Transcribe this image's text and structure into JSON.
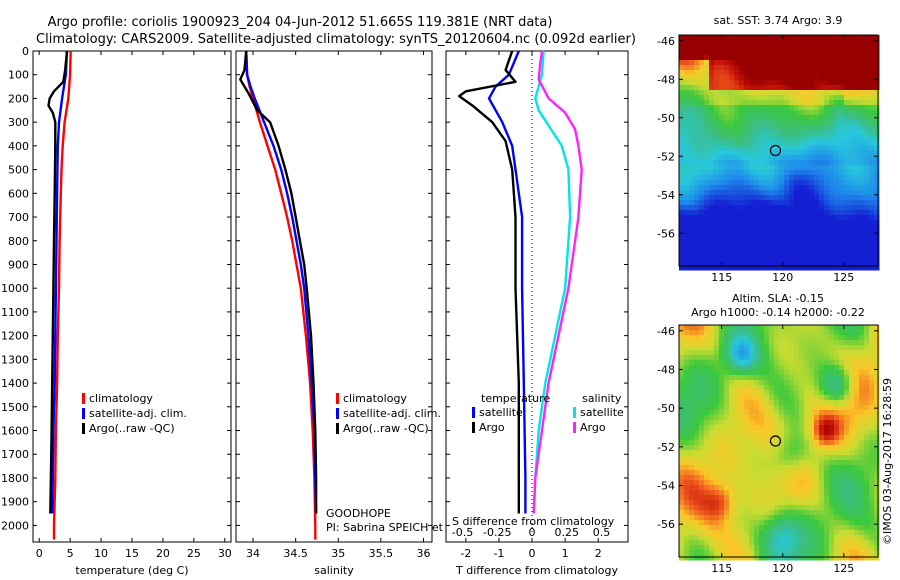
{
  "header": {
    "title_line1": "Argo profile: coriolis 1900923_204 04-Jun-2012 51.665S 119.381E (NRT data)",
    "title_line2": "Climatology: CARS2009. Satellite-adjusted climatology: synTS_20120604.nc (0.092d earlier)"
  },
  "footer": {
    "credit": "©IMOS 03-Aug-2017 16:28:59"
  },
  "annotations": {
    "program": "GOODHOPE",
    "pi": "PI: Sabrina SPEICH et Michel ARHAN"
  },
  "colors": {
    "climatology": "#ff0000",
    "satellite": "#0000ff",
    "argo": "#000000",
    "sal_satellite": "#00e5e5",
    "sal_argo": "#ff22ff"
  },
  "chart_data": [
    {
      "type": "line",
      "xlabel": "temperature (deg C)",
      "ylabel": "",
      "xlim": [
        -1,
        31
      ],
      "ylim": [
        2070,
        0
      ],
      "x_ticks": [
        0,
        5,
        10,
        15,
        20,
        25,
        30
      ],
      "y_ticks": [
        0,
        100,
        200,
        300,
        400,
        500,
        600,
        700,
        800,
        900,
        1000,
        1100,
        1200,
        1300,
        1400,
        1500,
        1600,
        1700,
        1800,
        1900,
        2000
      ],
      "legend": [
        "climatology",
        "satellite-adj. clim.",
        "Argo(..raw -QC)"
      ],
      "series": [
        {
          "name": "climatology",
          "color": "#ff0000",
          "points": [
            [
              5.1,
              0
            ],
            [
              5,
              100
            ],
            [
              4.7,
              200
            ],
            [
              4.1,
              300
            ],
            [
              3.8,
              400
            ],
            [
              3.6,
              500
            ],
            [
              3.5,
              600
            ],
            [
              3.3,
              800
            ],
            [
              3.2,
              1000
            ],
            [
              3,
              1200
            ],
            [
              2.9,
              1400
            ],
            [
              2.7,
              1600
            ],
            [
              2.6,
              1800
            ],
            [
              2.4,
              2000
            ],
            [
              2.4,
              2060
            ]
          ]
        },
        {
          "name": "satellite-adj. clim.",
          "color": "#0000ff",
          "points": [
            [
              4.5,
              0
            ],
            [
              4.3,
              100
            ],
            [
              3.7,
              200
            ],
            [
              3.2,
              300
            ],
            [
              3,
              400
            ],
            [
              2.9,
              600
            ],
            [
              2.8,
              800
            ],
            [
              2.7,
              1000
            ],
            [
              2.6,
              1200
            ],
            [
              2.5,
              1400
            ],
            [
              2.3,
              1600
            ],
            [
              2.2,
              1800
            ],
            [
              2.1,
              1950
            ]
          ]
        },
        {
          "name": "Argo(..raw -QC)",
          "color": "#000000",
          "points": [
            [
              4.5,
              0
            ],
            [
              4.2,
              80
            ],
            [
              3.9,
              130
            ],
            [
              2.4,
              170
            ],
            [
              1.7,
              200
            ],
            [
              1.5,
              230
            ],
            [
              2.2,
              260
            ],
            [
              2.6,
              300
            ],
            [
              2.6,
              400
            ],
            [
              2.5,
              600
            ],
            [
              2.4,
              800
            ],
            [
              2.3,
              1000
            ],
            [
              2.2,
              1200
            ],
            [
              2.1,
              1400
            ],
            [
              2,
              1600
            ],
            [
              1.9,
              1800
            ],
            [
              1.8,
              1950
            ]
          ]
        }
      ]
    },
    {
      "type": "line",
      "xlabel": "salinity",
      "ylabel": "",
      "xlim": [
        33.8,
        36.1
      ],
      "ylim": [
        2070,
        0
      ],
      "x_ticks": [
        34,
        34.5,
        35,
        35.5,
        36
      ],
      "legend": [
        "climatology",
        "satellite-adj. clim.",
        "Argo(..raw -QC)"
      ],
      "series": [
        {
          "name": "climatology",
          "color": "#ff0000",
          "points": [
            [
              33.92,
              0
            ],
            [
              33.93,
              100
            ],
            [
              33.96,
              150
            ],
            [
              34,
              200
            ],
            [
              34.08,
              300
            ],
            [
              34.17,
              400
            ],
            [
              34.26,
              500
            ],
            [
              34.33,
              600
            ],
            [
              34.4,
              700
            ],
            [
              34.46,
              800
            ],
            [
              34.51,
              900
            ],
            [
              34.56,
              1000
            ],
            [
              34.62,
              1200
            ],
            [
              34.67,
              1400
            ],
            [
              34.7,
              1600
            ],
            [
              34.72,
              1800
            ],
            [
              34.73,
              2000
            ],
            [
              34.73,
              2060
            ]
          ]
        },
        {
          "name": "satellite-adj. clim.",
          "color": "#0000ff",
          "points": [
            [
              33.92,
              0
            ],
            [
              33.93,
              100
            ],
            [
              33.97,
              150
            ],
            [
              34.02,
              200
            ],
            [
              34.13,
              300
            ],
            [
              34.24,
              400
            ],
            [
              34.33,
              500
            ],
            [
              34.4,
              600
            ],
            [
              34.46,
              700
            ],
            [
              34.51,
              800
            ],
            [
              34.56,
              900
            ],
            [
              34.6,
              1000
            ],
            [
              34.65,
              1200
            ],
            [
              34.69,
              1400
            ],
            [
              34.72,
              1600
            ],
            [
              34.73,
              1800
            ],
            [
              34.74,
              1950
            ]
          ]
        },
        {
          "name": "Argo(..raw -QC)",
          "color": "#000000",
          "points": [
            [
              33.92,
              0
            ],
            [
              33.9,
              80
            ],
            [
              33.85,
              120
            ],
            [
              33.95,
              180
            ],
            [
              34.05,
              250
            ],
            [
              34.2,
              300
            ],
            [
              34.3,
              400
            ],
            [
              34.38,
              500
            ],
            [
              34.45,
              600
            ],
            [
              34.5,
              700
            ],
            [
              34.55,
              800
            ],
            [
              34.6,
              900
            ],
            [
              34.63,
              1000
            ],
            [
              34.68,
              1200
            ],
            [
              34.71,
              1400
            ],
            [
              34.73,
              1600
            ],
            [
              34.74,
              1800
            ],
            [
              34.74,
              1950
            ]
          ]
        }
      ]
    },
    {
      "type": "line",
      "xlabel": "T difference from climatology",
      "top_label": "S difference from climatology",
      "ylabel": "",
      "xlim": [
        -2.6,
        2.9
      ],
      "ylim": [
        2070,
        0
      ],
      "x_ticks": [
        -2,
        -1,
        0,
        1,
        2
      ],
      "top_ticks": [
        "-0.5",
        "-0.25",
        "0",
        "0.25",
        "0.5"
      ],
      "top_tick_positions_T": [
        -2.1,
        -1.05,
        0,
        1.05,
        2.1
      ],
      "legend_titles": [
        "temperature",
        "salinity"
      ],
      "legend": [
        "satellite",
        "Argo",
        "satellite",
        "Argo"
      ],
      "series": [
        {
          "name": "satellite",
          "group": "temperature",
          "color": "#0000ff",
          "points": [
            [
              -0.4,
              0
            ],
            [
              -0.7,
              100
            ],
            [
              -1.1,
              150
            ],
            [
              -1.3,
              200
            ],
            [
              -0.9,
              300
            ],
            [
              -0.6,
              400
            ],
            [
              -0.5,
              500
            ],
            [
              -0.3,
              700
            ],
            [
              -0.3,
              1000
            ],
            [
              -0.25,
              1400
            ],
            [
              -0.2,
              1800
            ],
            [
              -0.2,
              1950
            ]
          ]
        },
        {
          "name": "Argo",
          "group": "temperature",
          "color": "#000000",
          "points": [
            [
              -0.6,
              0
            ],
            [
              -0.8,
              80
            ],
            [
              -0.5,
              130
            ],
            [
              -2,
              170
            ],
            [
              -2.2,
              190
            ],
            [
              -1.8,
              230
            ],
            [
              -1.2,
              300
            ],
            [
              -0.8,
              380
            ],
            [
              -0.6,
              500
            ],
            [
              -0.5,
              700
            ],
            [
              -0.5,
              1000
            ],
            [
              -0.4,
              1400
            ],
            [
              -0.4,
              1800
            ],
            [
              -0.4,
              1950
            ]
          ]
        },
        {
          "name": "satellite",
          "group": "salinity",
          "color": "#00e5e5",
          "points": [
            [
              0.35,
              0
            ],
            [
              0.3,
              100
            ],
            [
              0.1,
              200
            ],
            [
              0.2,
              250
            ],
            [
              0.9,
              400
            ],
            [
              1.1,
              500
            ],
            [
              1.15,
              700
            ],
            [
              1,
              1000
            ],
            [
              0.7,
              1200
            ],
            [
              0.4,
              1400
            ],
            [
              0.2,
              1600
            ],
            [
              0.1,
              1800
            ],
            [
              0.05,
              1950
            ]
          ]
        },
        {
          "name": "Argo",
          "group": "salinity",
          "color": "#ff22ff",
          "points": [
            [
              0.3,
              0
            ],
            [
              0.25,
              50
            ],
            [
              0.2,
              120
            ],
            [
              0.5,
              200
            ],
            [
              1,
              260
            ],
            [
              1.3,
              330
            ],
            [
              1.4,
              400
            ],
            [
              1.5,
              500
            ],
            [
              1.4,
              700
            ],
            [
              1.3,
              800
            ],
            [
              1.1,
              1000
            ],
            [
              0.8,
              1200
            ],
            [
              0.5,
              1400
            ],
            [
              0.3,
              1600
            ],
            [
              0.1,
              1800
            ],
            [
              0.05,
              1950
            ]
          ]
        }
      ]
    },
    {
      "type": "heatmap",
      "title": "sat. SST: 3.74 Argo: 3.9",
      "xlim": [
        111.5,
        127.8
      ],
      "ylim": [
        -57.7,
        -45.7
      ],
      "x_ticks": [
        115,
        120,
        125
      ],
      "y_ticks": [
        -46,
        -48,
        -50,
        -52,
        -54,
        -56
      ],
      "marker": [
        119.4,
        -51.7
      ]
    },
    {
      "type": "heatmap",
      "title_line1": "Altim. SLA: -0.15",
      "title_line2": "Argo h1000: -0.14 h2000: -0.22",
      "xlim": [
        111.5,
        127.8
      ],
      "ylim": [
        -57.7,
        -45.7
      ],
      "x_ticks": [
        115,
        120,
        125
      ],
      "y_ticks": [
        -46,
        -48,
        -50,
        -52,
        -54,
        -56
      ],
      "marker": [
        119.4,
        -51.7
      ]
    }
  ]
}
